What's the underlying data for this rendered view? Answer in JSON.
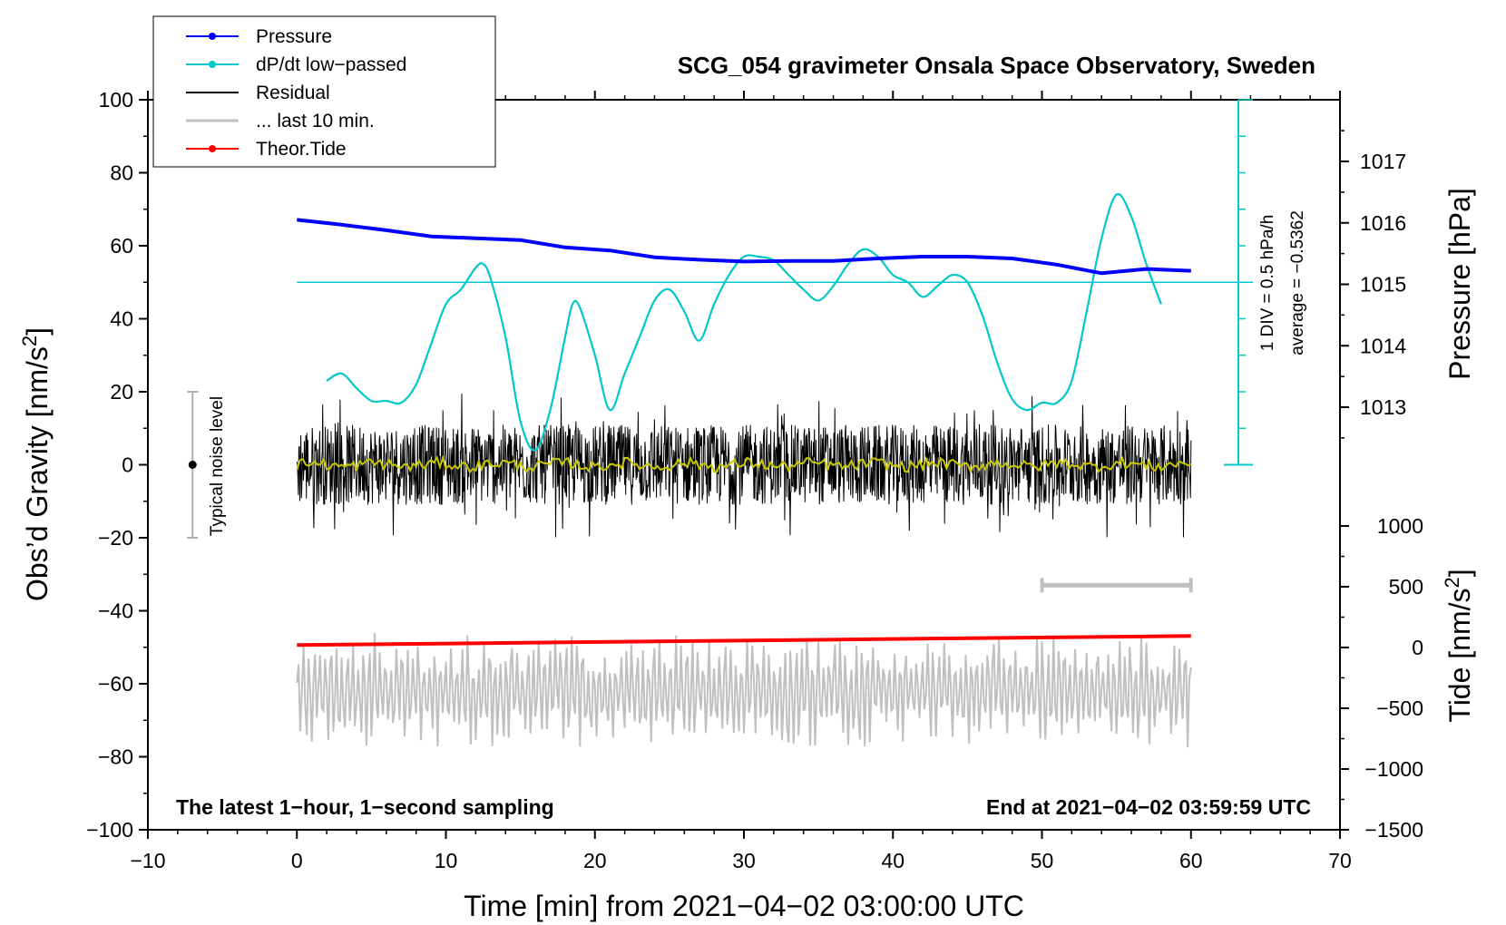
{
  "chart_data": {
    "type": "line",
    "title": "SCG_054 gravimeter Onsala Space Observatory, Sweden",
    "xlabel": "Time [min] from 2021−04−02 03:00:00 UTC",
    "ylabel_left": "Obs’d Gravity [nm/s",
    "ylabel_left_sup": "2",
    "ylabel_left_close": "]",
    "ylabel_pressure": "Pressure [hPa]",
    "ylabel_tide": "Tide [nm/s",
    "ylabel_tide_sup": "2",
    "ylabel_tide_close": "]",
    "xlim": [
      -10,
      70
    ],
    "ylim_left": [
      -100,
      100
    ],
    "x_ticks": [
      -10,
      0,
      10,
      20,
      30,
      40,
      50,
      60,
      70
    ],
    "x_tick_labels": [
      "−10",
      "0",
      "10",
      "20",
      "30",
      "40",
      "50",
      "60",
      "70"
    ],
    "y_ticks_left": [
      -100,
      -80,
      -60,
      -40,
      -20,
      0,
      20,
      40,
      60,
      80,
      100
    ],
    "y_tick_labels_left": [
      "−100",
      "−80",
      "−60",
      "−40",
      "−20",
      "0",
      "20",
      "40",
      "60",
      "80",
      "100"
    ],
    "pressure_axis": {
      "range": [
        1012,
        1018
      ],
      "ticks": [
        1013,
        1014,
        1015,
        1016,
        1017
      ],
      "tick_labels": [
        "1013",
        "1014",
        "1015",
        "1016",
        "1017"
      ]
    },
    "tide_axis": {
      "range": [
        -1500,
        1500
      ],
      "ticks": [
        -1500,
        -1000,
        -500,
        0,
        500,
        1000
      ],
      "tick_labels": [
        "−1500",
        "−1000",
        "−500",
        "0",
        "500",
        "1000"
      ]
    },
    "legend": [
      {
        "label": "Pressure",
        "color": "#0000ff",
        "marker": true
      },
      {
        "label": "dP/dt low−passed",
        "color": "#00c8c8",
        "marker": true
      },
      {
        "label": "Residual",
        "color": "#000000",
        "marker": false
      },
      {
        "label": "... last 10 min.",
        "color": "#c0c0c0",
        "marker": false
      },
      {
        "label": "Theor.Tide",
        "color": "#ff0000",
        "marker": true
      }
    ],
    "series": [
      {
        "name": "Pressure",
        "axis": "pressure",
        "color": "#0000ff",
        "x": [
          0,
          3,
          6,
          9,
          12,
          15,
          18,
          21,
          24,
          27,
          30,
          33,
          36,
          39,
          42,
          45,
          48,
          51,
          54,
          57,
          60
        ],
        "values": [
          1016.05,
          1015.97,
          1015.88,
          1015.78,
          1015.75,
          1015.72,
          1015.6,
          1015.55,
          1015.44,
          1015.4,
          1015.37,
          1015.38,
          1015.38,
          1015.42,
          1015.45,
          1015.45,
          1015.42,
          1015.32,
          1015.18,
          1015.25,
          1015.22
        ]
      },
      {
        "name": "dP/dt low−passed",
        "axis": "left",
        "color": "#00c8c8",
        "x": [
          2,
          3,
          4,
          5,
          6,
          7,
          8,
          9,
          10,
          11,
          12,
          12.5,
          13,
          14,
          15,
          16,
          17,
          18,
          18.5,
          19,
          20,
          21,
          22,
          23,
          24,
          25,
          26,
          27,
          28,
          29,
          30,
          31,
          32,
          33,
          34,
          35,
          36,
          37,
          38,
          39,
          40,
          41,
          42,
          43,
          44,
          45,
          46,
          47,
          48,
          49,
          50,
          51,
          52,
          53,
          54,
          55,
          56,
          57,
          58
        ],
        "values": [
          23,
          25,
          21,
          17.5,
          17.5,
          17,
          22,
          33,
          44,
          48,
          54,
          55,
          51,
          35,
          12,
          4,
          15,
          35,
          44,
          43,
          30,
          15,
          25,
          35,
          45,
          48,
          42,
          34,
          44,
          52,
          57,
          57,
          56,
          52,
          48,
          45,
          49,
          55,
          59,
          57,
          52,
          50,
          46,
          49,
          52,
          50,
          41,
          28,
          18,
          15,
          17,
          17,
          23,
          42,
          62,
          74,
          68,
          55,
          44
        ]
      },
      {
        "name": "Residual",
        "axis": "left",
        "color": "#000000",
        "x_range": [
          0,
          60
        ],
        "amplitude": 20
      },
      {
        "name": "Residual (smoothed)",
        "axis": "left",
        "color": "#c8c800",
        "x_range": [
          0,
          60
        ],
        "amplitude": 1.5
      },
      {
        "name": "... last 10 min.",
        "axis": "left",
        "color": "#c0c0c0",
        "x_range": [
          0,
          60
        ],
        "center": -62,
        "amplitude": 16
      },
      {
        "name": "Theor.Tide",
        "axis": "tide",
        "color": "#ff0000",
        "x": [
          0,
          60
        ],
        "values": [
          20,
          95
        ]
      }
    ],
    "annotations": {
      "noise_bar_label": "Typical noise level",
      "noise_bar": {
        "x": -7,
        "y": [
          -20,
          20
        ]
      },
      "last10_bar": {
        "x": [
          50,
          60
        ],
        "y": -33
      },
      "dpdt_scale_line1": "1 DIV = 0.5 hPa/h",
      "dpdt_scale_line2": "average = −0.5362",
      "dpdt_reference_level": 50,
      "bottom_left_note": "The latest 1−hour, 1−second sampling",
      "bottom_right_note": "End at 2021−04−02 03:59:59 UTC"
    }
  }
}
